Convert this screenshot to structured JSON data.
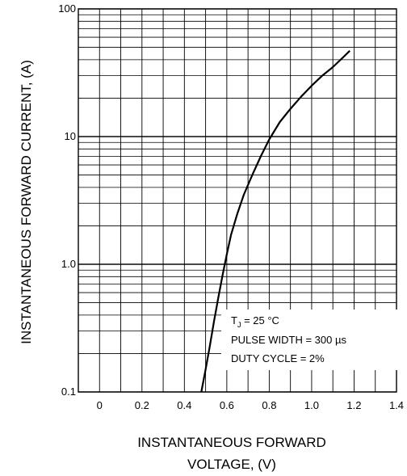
{
  "chart_data": {
    "type": "line",
    "ylabel": "INSTANTANEOUS FORWARD CURRENT, (A)",
    "xlabel_lines": [
      "INSTANTANEOUS FORWARD",
      "VOLTAGE, (V)"
    ],
    "x_ticks": [
      "0",
      "0.2",
      "0.4",
      "0.6",
      "0.8",
      "1.0",
      "1.2",
      "1.4"
    ],
    "y_ticks": [
      {
        "value": 0.1,
        "label": "0.1"
      },
      {
        "value": 1,
        "label": "1.0"
      },
      {
        "value": 10,
        "label": "10"
      },
      {
        "value": 100,
        "label": "100"
      }
    ],
    "xlim": [
      -0.1,
      1.4
    ],
    "ylim": [
      0.1,
      100
    ],
    "y_scale": "log",
    "grid": true,
    "annotation": {
      "tj_label": "T",
      "tj_sub": "J",
      "tj_value": " = 25 °C",
      "lines": [
        "PULSE WIDTH = 300 µs",
        "DUTY CYCLE = 2%"
      ]
    },
    "series": [
      {
        "x": [
          0.48,
          0.5,
          0.52,
          0.54,
          0.56,
          0.58,
          0.6,
          0.62,
          0.65,
          0.68,
          0.72,
          0.76,
          0.8,
          0.85,
          0.9,
          0.95,
          1.0,
          1.05,
          1.1,
          1.15,
          1.18
        ],
        "y": [
          0.1,
          0.15,
          0.23,
          0.36,
          0.55,
          0.82,
          1.2,
          1.7,
          2.5,
          3.5,
          5.0,
          7.0,
          9.5,
          13,
          16.5,
          20.5,
          25,
          30,
          35,
          42,
          47
        ]
      }
    ]
  }
}
